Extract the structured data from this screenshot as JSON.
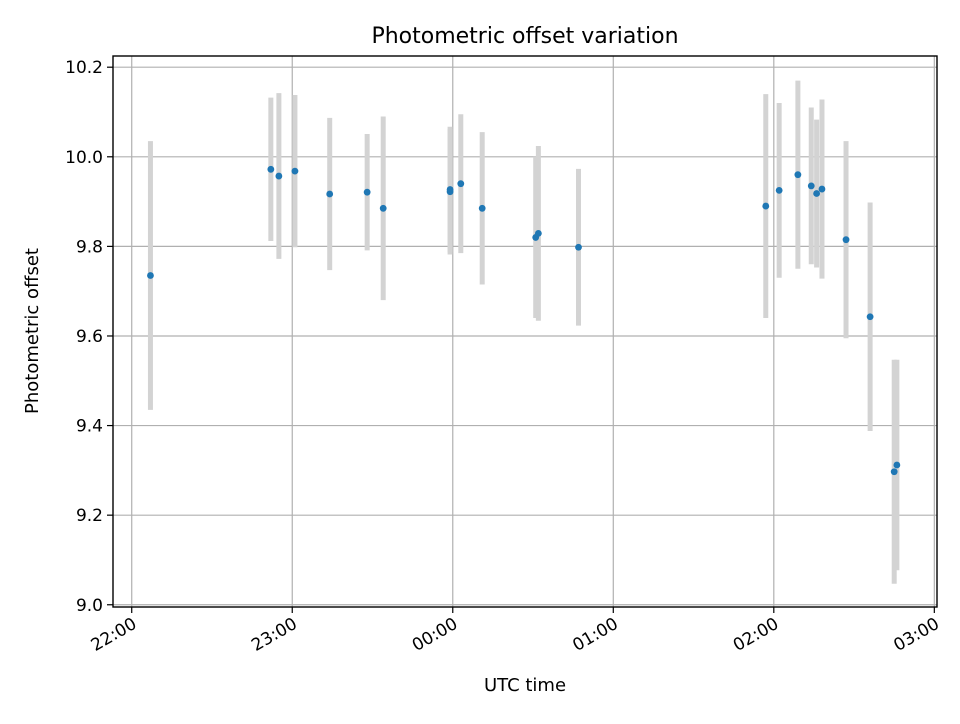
{
  "chart_data": {
    "type": "scatter",
    "title": "Photometric offset variation",
    "xlabel": "UTC time",
    "ylabel": "Photometric offset",
    "x_axis": "time",
    "xlim": [
      "21:53",
      "03:01"
    ],
    "ylim": [
      8.995,
      10.225
    ],
    "xticks": [
      "22:00",
      "23:00",
      "00:00",
      "01:00",
      "02:00",
      "03:00"
    ],
    "yticks": [
      "9.0",
      "9.2",
      "9.4",
      "9.6",
      "9.8",
      "10.0",
      "10.2"
    ],
    "grid": true,
    "marker_color": "#1f77b4",
    "errorbar_color": "#d3d3d3",
    "points": [
      {
        "x": "22:07",
        "y": 9.735,
        "yerr": 0.3
      },
      {
        "x": "22:52",
        "y": 9.972,
        "yerr": 0.16
      },
      {
        "x": "22:55",
        "y": 9.957,
        "yerr": 0.185
      },
      {
        "x": "23:01",
        "y": 9.968,
        "yerr": 0.17
      },
      {
        "x": "23:14",
        "y": 9.917,
        "yerr": 0.17
      },
      {
        "x": "23:28",
        "y": 9.921,
        "yerr": 0.13
      },
      {
        "x": "23:34",
        "y": 9.885,
        "yerr": 0.205
      },
      {
        "x": "23:59",
        "y": 9.922,
        "yerr": 0.14
      },
      {
        "x": "23:59",
        "y": 9.927,
        "yerr": 0.14
      },
      {
        "x": "00:03",
        "y": 9.94,
        "yerr": 0.155
      },
      {
        "x": "00:11",
        "y": 9.885,
        "yerr": 0.17
      },
      {
        "x": "00:31",
        "y": 9.82,
        "yerr": 0.18
      },
      {
        "x": "00:32",
        "y": 9.829,
        "yerr": 0.195
      },
      {
        "x": "00:47",
        "y": 9.798,
        "yerr": 0.175
      },
      {
        "x": "01:57",
        "y": 9.89,
        "yerr": 0.25
      },
      {
        "x": "02:02",
        "y": 9.925,
        "yerr": 0.195
      },
      {
        "x": "02:09",
        "y": 9.96,
        "yerr": 0.21
      },
      {
        "x": "02:14",
        "y": 9.935,
        "yerr": 0.175
      },
      {
        "x": "02:16",
        "y": 9.918,
        "yerr": 0.165
      },
      {
        "x": "02:18",
        "y": 9.928,
        "yerr": 0.2
      },
      {
        "x": "02:27",
        "y": 9.815,
        "yerr": 0.22
      },
      {
        "x": "02:36",
        "y": 9.643,
        "yerr": 0.255
      },
      {
        "x": "02:45",
        "y": 9.297,
        "yerr": 0.25
      },
      {
        "x": "02:46",
        "y": 9.312,
        "yerr": 0.235
      }
    ]
  }
}
